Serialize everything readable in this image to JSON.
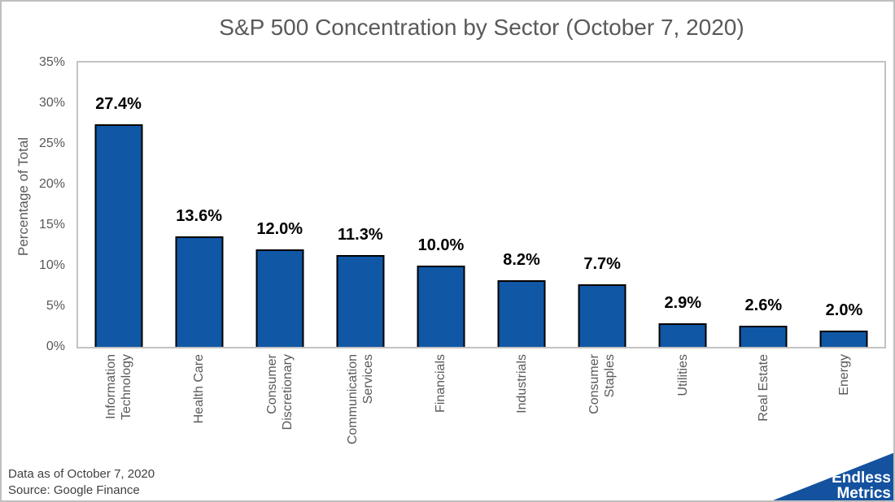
{
  "chart_data": {
    "type": "bar",
    "title": "S&P 500 Concentration by Sector (October 7, 2020)",
    "xlabel": "",
    "ylabel": "Percentage of Total",
    "categories": [
      "Information\nTechnology",
      "Health Care",
      "Consumer\nDiscretionary",
      "Communication\nServices",
      "Financials",
      "Industrials",
      "Consumer\nStaples",
      "Utilities",
      "Real Estate",
      "Energy"
    ],
    "values": [
      27.4,
      13.6,
      12.0,
      11.3,
      10.0,
      8.2,
      7.7,
      2.9,
      2.6,
      2.0
    ],
    "data_labels": [
      "27.4%",
      "13.6%",
      "12.0%",
      "11.3%",
      "10.0%",
      "8.2%",
      "7.7%",
      "2.9%",
      "2.6%",
      "2.0%"
    ],
    "ylim": [
      0,
      35
    ],
    "ytick_values": [
      0,
      5,
      10,
      15,
      20,
      25,
      30,
      35
    ],
    "ytick_labels": [
      "0%",
      "5%",
      "10%",
      "15%",
      "20%",
      "25%",
      "30%",
      "35%"
    ],
    "grid": false,
    "legend": "none",
    "bar_color": "#1057A6",
    "bar_border_color": "#000000"
  },
  "footer": {
    "line1": "Data as of October 7, 2020",
    "line2": "Source: Google Finance"
  },
  "logo": {
    "line1": "Endless",
    "line2": "Metrics",
    "wedge_color": "#14529F",
    "text_color": "#FFFFFF"
  }
}
